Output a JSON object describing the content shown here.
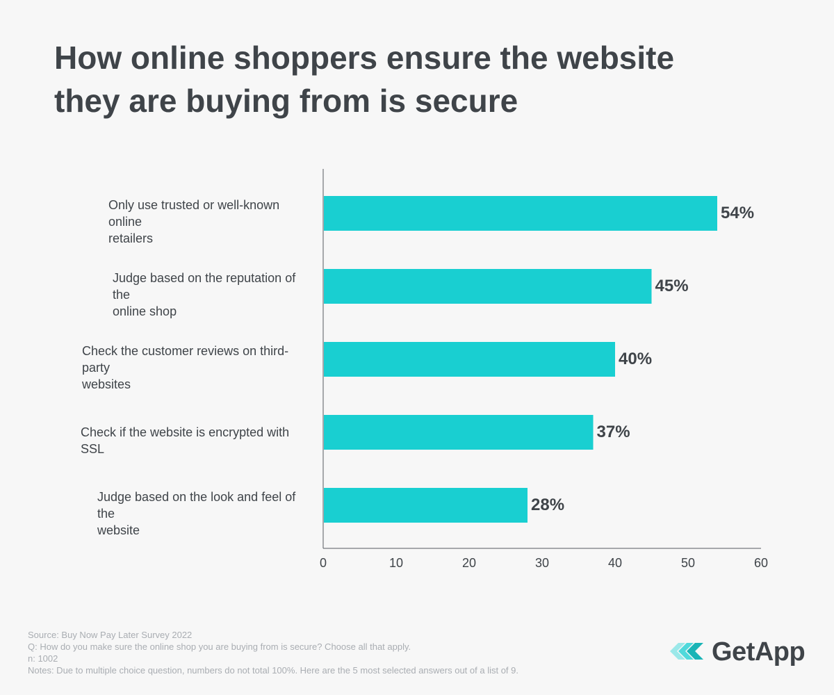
{
  "title_lines": [
    "How online shoppers ensure the website",
    "they are buying from is secure"
  ],
  "chart_data": {
    "type": "bar",
    "orientation": "horizontal",
    "categories": [
      [
        "Only use trusted or well-known online",
        "retailers"
      ],
      [
        "Judge based on the reputation of the",
        "online shop"
      ],
      [
        "Check the customer reviews on third-party",
        "websites"
      ],
      [
        "Check if the website is encrypted with SSL"
      ],
      [
        "Judge based on the look and feel of the",
        "website"
      ]
    ],
    "values": [
      54,
      45,
      40,
      37,
      28
    ],
    "value_labels": [
      "54%",
      "45%",
      "40%",
      "37%",
      "28%"
    ],
    "xlim": [
      0,
      60
    ],
    "xticks": [
      0,
      10,
      20,
      30,
      40,
      50,
      60
    ],
    "bar_color": "#19cfd1",
    "axis_color": "#555a5f",
    "grid": false
  },
  "footer": {
    "source": "Source: Buy Now Pay Later Survey 2022",
    "question": "Q: How do you make sure the online shop you are buying from is secure? Choose all that apply.",
    "n": "n: 1002",
    "notes": "Notes: Due to multiple choice question, numbers do not total 100%. Here are the 5 most selected answers out of a list of 9."
  },
  "logo": {
    "text": "GetApp",
    "icon": "getapp-chevrons-icon",
    "colors": [
      "#9be8e9",
      "#4fd9db",
      "#19b4b6"
    ]
  }
}
